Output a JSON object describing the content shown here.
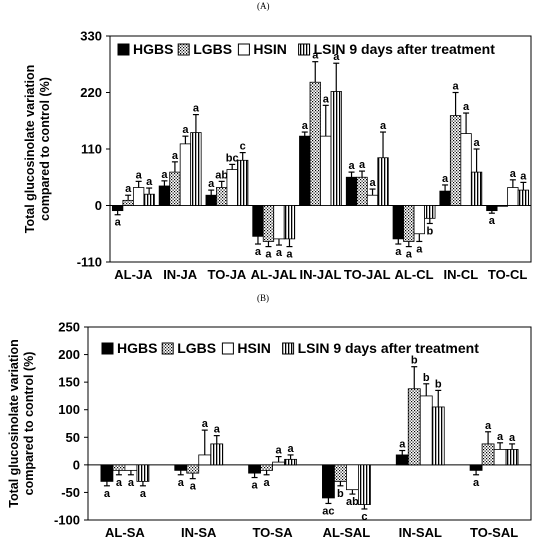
{
  "panel_labels": [
    "(A)",
    "(B)"
  ],
  "chart_data": [
    {
      "type": "bar",
      "panel": "(A)",
      "title": "",
      "ylabel": "Total glucosinolate variation compared to control (%)",
      "xlabel": "",
      "ylim": [
        -110,
        330
      ],
      "yticks": [
        -110,
        0,
        110,
        220,
        330
      ],
      "legend_position": "top",
      "categories": [
        "AL-JA",
        "IN-JA",
        "TO-JA",
        "AL-JAL",
        "IN-JAL",
        "TO-JAL",
        "AL-CL",
        "IN-CL",
        "TO-CL"
      ],
      "series": [
        {
          "name": "HGBS",
          "pattern": "solid",
          "values": [
            -10,
            38,
            20,
            -60,
            135,
            55,
            -65,
            28,
            -10
          ],
          "errors": [
            8,
            10,
            10,
            15,
            8,
            10,
            10,
            12,
            5
          ],
          "letters": [
            "a",
            "a",
            "a",
            "a",
            "a",
            "a",
            "a",
            "a",
            "a"
          ]
        },
        {
          "name": "LGBS",
          "pattern": "dots",
          "values": [
            10,
            65,
            35,
            -70,
            240,
            55,
            -70,
            175,
            0
          ],
          "errors": [
            10,
            20,
            12,
            10,
            40,
            12,
            10,
            45,
            0
          ],
          "letters": [
            "a",
            "a",
            "ab",
            "a",
            "a",
            "a",
            "a",
            "a",
            ""
          ]
        },
        {
          "name": "HSIN",
          "pattern": "hollow",
          "values": [
            35,
            120,
            70,
            -65,
            135,
            20,
            -55,
            140,
            35
          ],
          "errors": [
            12,
            15,
            10,
            12,
            60,
            12,
            15,
            40,
            15
          ],
          "letters": [
            "a",
            "a",
            "bc",
            "a",
            "a",
            "a",
            "a",
            "a",
            "a"
          ]
        },
        {
          "name": "LSIN 9 days after treatment",
          "pattern": "vstripes",
          "values": [
            22,
            142,
            88,
            -65,
            222,
            93,
            -25,
            65,
            30
          ],
          "errors": [
            12,
            35,
            15,
            15,
            55,
            50,
            10,
            45,
            15
          ],
          "letters": [
            "a",
            "a",
            "c",
            "a",
            "a",
            "a",
            "b",
            "a",
            "a"
          ]
        }
      ]
    },
    {
      "type": "bar",
      "panel": "(B)",
      "title": "",
      "ylabel": "Total glucosinolate variation compared to control (%)",
      "xlabel": "",
      "ylim": [
        -100,
        250
      ],
      "yticks": [
        -100,
        -50,
        0,
        50,
        100,
        150,
        200,
        250
      ],
      "legend_position": "top",
      "categories": [
        "AL-SA",
        "IN-SA",
        "TO-SA",
        "AL-SAL",
        "IN-SAL",
        "TO-SAL"
      ],
      "series": [
        {
          "name": "HGBS",
          "pattern": "solid",
          "values": [
            -30,
            -10,
            -15,
            -60,
            18,
            -10
          ],
          "errors": [
            8,
            8,
            8,
            10,
            8,
            8
          ],
          "letters": [
            "a",
            "a",
            "a",
            "ac",
            "a",
            "a"
          ]
        },
        {
          "name": "LGBS",
          "pattern": "dots",
          "values": [
            -10,
            -15,
            -10,
            -30,
            138,
            38
          ],
          "errors": [
            8,
            10,
            8,
            8,
            40,
            22
          ],
          "letters": [
            "a",
            "a",
            "a",
            "b",
            "b",
            "a"
          ]
        },
        {
          "name": "HSIN",
          "pattern": "hollow",
          "values": [
            -10,
            18,
            5,
            -45,
            125,
            28
          ],
          "errors": [
            8,
            45,
            10,
            8,
            22,
            12
          ],
          "letters": [
            "a",
            "a",
            "a",
            "ab",
            "b",
            "a"
          ]
        },
        {
          "name": "LSIN 9 days after treatment",
          "pattern": "vstripes",
          "values": [
            -30,
            38,
            10,
            -72,
            105,
            28
          ],
          "errors": [
            8,
            15,
            8,
            8,
            30,
            10
          ],
          "letters": [
            "a",
            "a",
            "a",
            "c",
            "b",
            "a"
          ]
        }
      ]
    }
  ]
}
